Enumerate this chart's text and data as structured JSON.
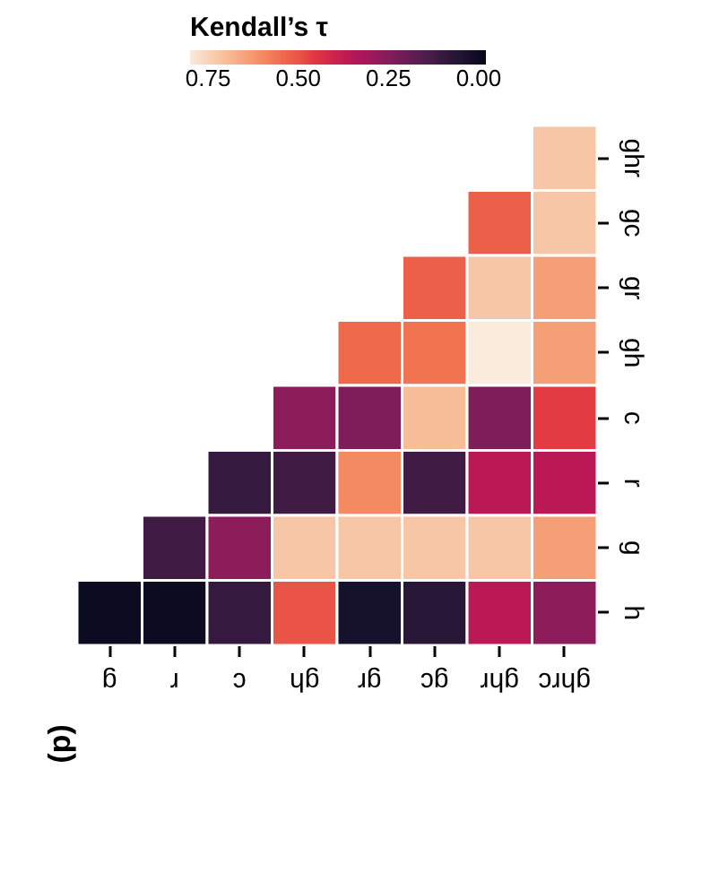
{
  "chart_data": {
    "type": "heatmap",
    "clabel": "Kendall’s τ",
    "annotations": [
      "(d)"
    ],
    "categories": [
      "g",
      "r",
      "c",
      "gh",
      "gr",
      "gc",
      "ghr",
      "ghrc"
    ],
    "y_categories": [
      "ghr",
      "gc",
      "gr",
      "gh",
      "c",
      "r",
      "g",
      "h"
    ],
    "cells": [
      [
        null,
        null,
        null,
        null,
        null,
        null,
        null,
        0.72
      ],
      [
        null,
        null,
        null,
        null,
        null,
        null,
        0.52,
        0.72
      ],
      [
        null,
        null,
        null,
        null,
        null,
        0.52,
        0.72,
        0.64
      ],
      [
        null,
        null,
        null,
        null,
        0.54,
        0.56,
        0.8,
        0.64
      ],
      [
        null,
        null,
        null,
        0.27,
        0.24,
        0.7,
        0.24,
        0.46
      ],
      [
        null,
        null,
        0.1,
        0.12,
        0.6,
        0.12,
        0.36,
        0.36
      ],
      [
        null,
        0.12,
        0.27,
        0.72,
        0.72,
        0.72,
        0.72,
        0.64
      ],
      [
        0.0,
        0.0,
        0.1,
        0.5,
        0.03,
        0.07,
        0.36,
        0.27
      ]
    ],
    "clim": [
      0.8,
      -0.02
    ],
    "cticks": [
      0.75,
      {
        "value": 0.5,
        "label": "0.50"
      },
      0.25,
      {
        "value": 0.0,
        "label": "0.00"
      }
    ]
  }
}
